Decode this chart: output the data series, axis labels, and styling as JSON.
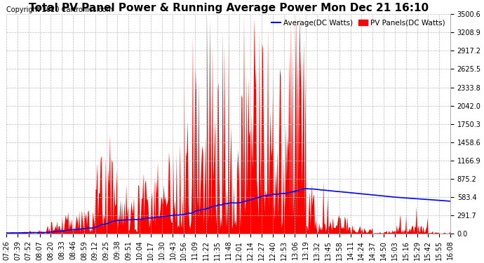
{
  "title": "Total PV Panel Power & Running Average Power Mon Dec 21 16:10",
  "copyright": "Copyright 2020 Cartronics.com",
  "legend_avg": "Average(DC Watts)",
  "legend_pv": "PV Panels(DC Watts)",
  "ylabel_values": [
    0.0,
    291.7,
    583.4,
    875.2,
    1166.9,
    1458.6,
    1750.3,
    2042.0,
    2333.8,
    2625.5,
    2917.2,
    3208.9,
    3500.6
  ],
  "ymax": 3500.6,
  "ymin": 0.0,
  "avg_color": "#0000ff",
  "pv_color": "#ff0000",
  "bg_color": "#ffffff",
  "grid_color": "#bbbbbb",
  "title_fontsize": 11,
  "tick_fontsize": 7,
  "copyright_fontsize": 7
}
